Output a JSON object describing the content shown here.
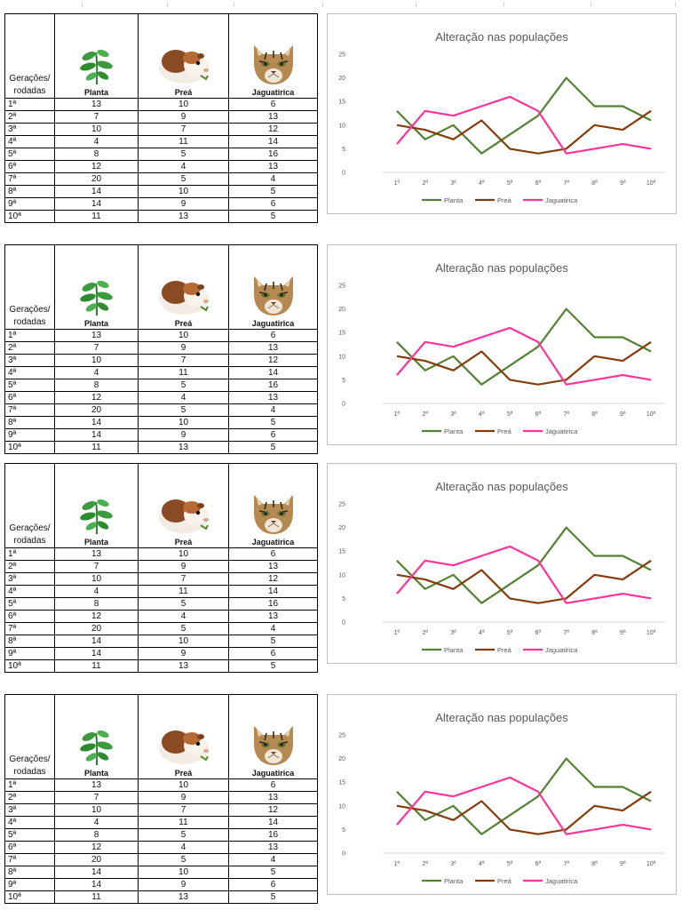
{
  "table": {
    "gen_header": [
      "Gerações/",
      "rodadas"
    ],
    "columns": [
      {
        "label": "Planta",
        "icon": "plant-icon"
      },
      {
        "label": "Preá",
        "icon": "guinea-pig-icon"
      },
      {
        "label": "Jaguatirica",
        "icon": "ocelot-icon"
      }
    ],
    "rows": [
      {
        "round": "1ª",
        "planta": 13,
        "prea": 10,
        "jaguatirica": 6
      },
      {
        "round": "2ª",
        "planta": 7,
        "prea": 9,
        "jaguatirica": 13
      },
      {
        "round": "3ª",
        "planta": 10,
        "prea": 7,
        "jaguatirica": 12
      },
      {
        "round": "4ª",
        "planta": 4,
        "prea": 11,
        "jaguatirica": 14
      },
      {
        "round": "5ª",
        "planta": 8,
        "prea": 5,
        "jaguatirica": 16
      },
      {
        "round": "6ª",
        "planta": 12,
        "prea": 4,
        "jaguatirica": 13
      },
      {
        "round": "7ª",
        "planta": 20,
        "prea": 5,
        "jaguatirica": 4
      },
      {
        "round": "8ª",
        "planta": 14,
        "prea": 10,
        "jaguatirica": 5
      },
      {
        "round": "9ª",
        "planta": 14,
        "prea": 9,
        "jaguatirica": 6
      },
      {
        "round": "10ª",
        "planta": 11,
        "prea": 13,
        "jaguatirica": 5
      }
    ]
  },
  "chart_data": {
    "type": "line",
    "title": "Alteração nas populações",
    "categories": [
      "1ª",
      "2ª",
      "3ª",
      "4ª",
      "5ª",
      "6ª",
      "7ª",
      "8ª",
      "9ª",
      "10ª"
    ],
    "ylim": [
      0,
      25
    ],
    "yticks": [
      0,
      5,
      10,
      15,
      20,
      25
    ],
    "grid": false,
    "legend": "bottom",
    "series": [
      {
        "name": "Planta",
        "color": "#548235",
        "values": [
          13,
          7,
          10,
          4,
          8,
          12,
          20,
          14,
          14,
          11
        ]
      },
      {
        "name": "Preá",
        "color": "#843C0C",
        "values": [
          10,
          9,
          7,
          11,
          5,
          4,
          5,
          10,
          9,
          13
        ]
      },
      {
        "name": "Jaguatirica",
        "color": "#FF3399",
        "values": [
          6,
          13,
          12,
          14,
          16,
          13,
          4,
          5,
          6,
          5
        ]
      }
    ]
  },
  "panel_count": 4
}
